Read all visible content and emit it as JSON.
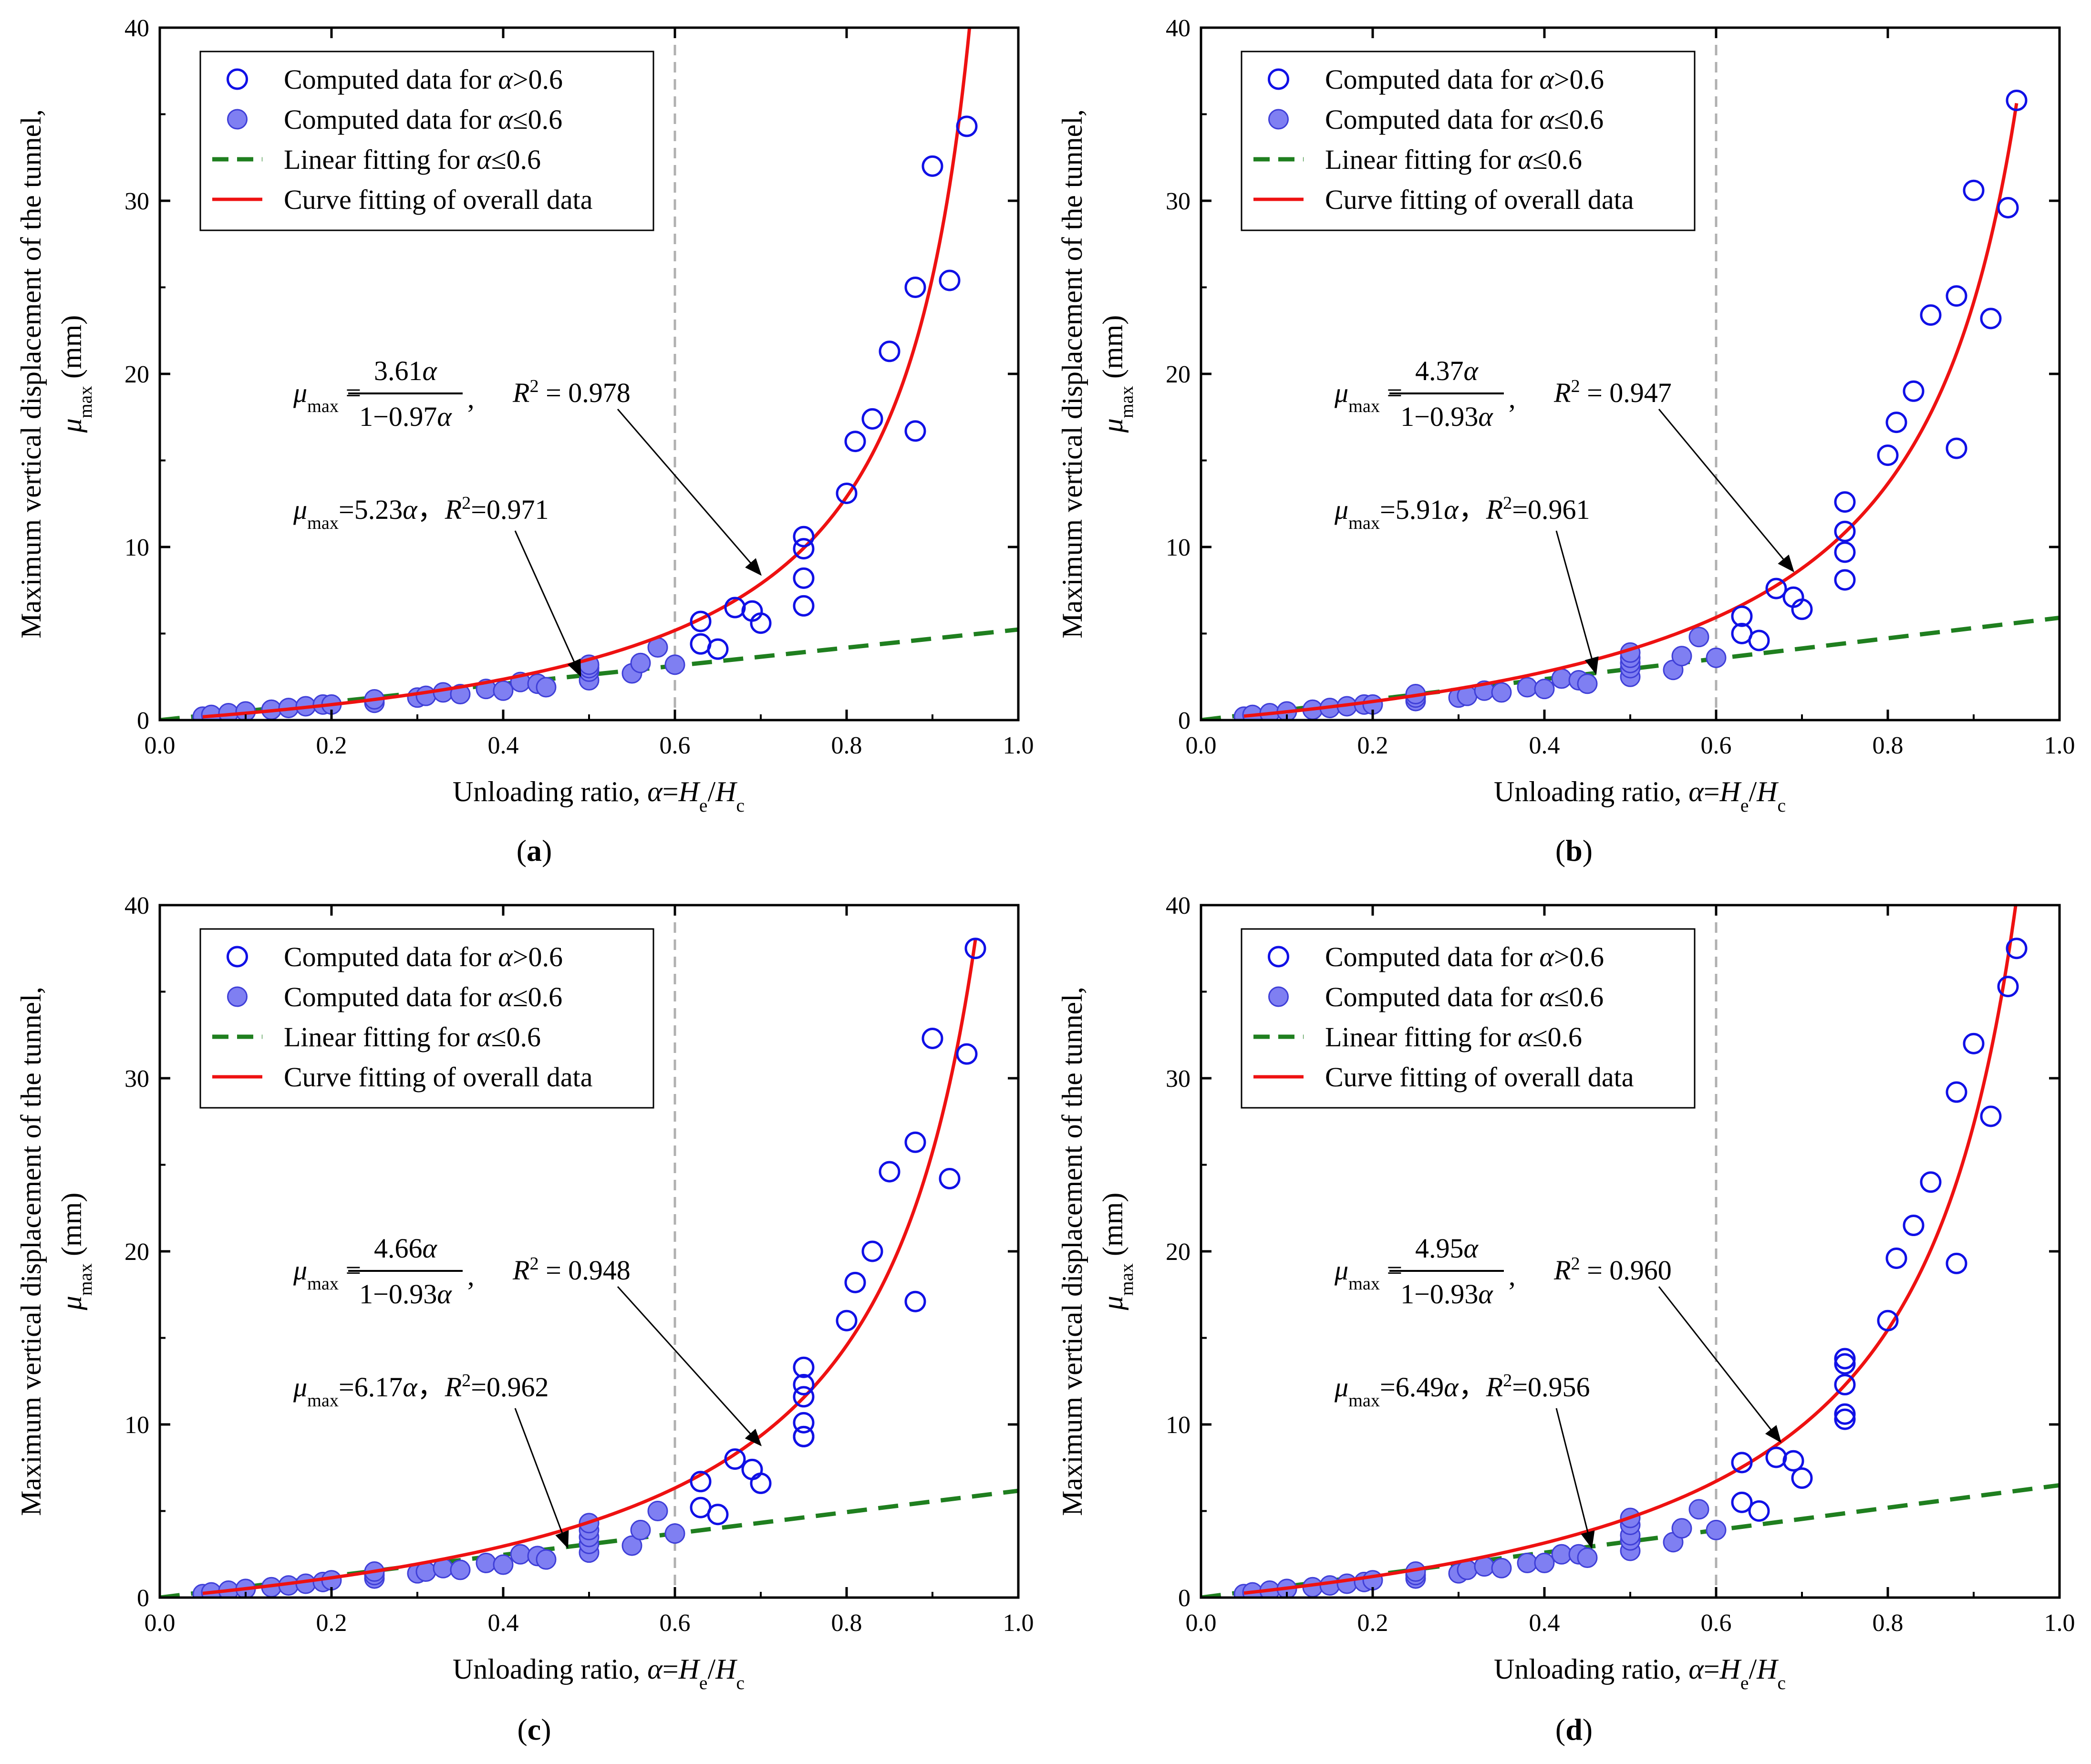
{
  "figure": {
    "panel_labels": [
      "(a)",
      "(b)",
      "(c)",
      "(d)"
    ]
  },
  "colors": {
    "open_marker": "#1010e6",
    "filled_marker_fill": "#7f7ff2",
    "filled_marker_stroke": "#3f3fd8",
    "linear_fit": "#1f7f1f",
    "curve_fit": "#ee1111",
    "threshold_line": "#b0b0b0"
  },
  "legend": {
    "entries": [
      "Computed data for α>0.6",
      "Computed data for α≤0.6",
      "Linear fitting for α≤0.6",
      "Curve fitting of overall data"
    ]
  },
  "chart_data": [
    {
      "type": "scatter",
      "panel": "(a)",
      "xlabel": "Unloading ratio, α=He/Hc",
      "ylabel_line1": "Maximum vertical displacement of the tunnel,",
      "ylabel_line2": "μmax (mm)",
      "xlim": [
        0,
        1.0
      ],
      "ylim": [
        0,
        40
      ],
      "xticks": [
        0.0,
        0.2,
        0.4,
        0.6,
        0.8,
        1.0
      ],
      "xtick_labels": [
        "0.0",
        "0.2",
        "0.4",
        "0.6",
        "0.8",
        "1.0"
      ],
      "yticks": [
        0,
        10,
        20,
        30,
        40
      ],
      "ytick_labels": [
        "0",
        "10",
        "20",
        "30",
        "40"
      ],
      "threshold_x": 0.6,
      "series": [
        {
          "name": "Computed data for α≤0.6",
          "marker": "filled",
          "x": [
            0.05,
            0.06,
            0.08,
            0.1,
            0.13,
            0.15,
            0.17,
            0.19,
            0.2,
            0.25,
            0.25,
            0.3,
            0.31,
            0.33,
            0.35,
            0.38,
            0.4,
            0.42,
            0.44,
            0.45,
            0.5,
            0.5,
            0.5,
            0.5,
            0.55,
            0.56,
            0.58,
            0.6
          ],
          "y": [
            0.2,
            0.3,
            0.4,
            0.5,
            0.6,
            0.7,
            0.8,
            0.9,
            0.9,
            1.0,
            1.2,
            1.3,
            1.4,
            1.6,
            1.5,
            1.8,
            1.7,
            2.2,
            2.1,
            1.9,
            2.3,
            2.8,
            3.0,
            3.2,
            2.7,
            3.3,
            4.2,
            3.2
          ]
        },
        {
          "name": "Computed data for α>0.6",
          "marker": "open",
          "x": [
            0.63,
            0.63,
            0.65,
            0.67,
            0.69,
            0.7,
            0.75,
            0.75,
            0.75,
            0.75,
            0.8,
            0.81,
            0.83,
            0.85,
            0.88,
            0.88,
            0.9,
            0.92,
            0.94
          ],
          "y": [
            5.7,
            4.4,
            4.1,
            6.5,
            6.3,
            5.6,
            10.6,
            9.9,
            8.2,
            6.6,
            13.1,
            16.1,
            17.4,
            21.3,
            25.0,
            16.7,
            32.0,
            25.4,
            34.3
          ]
        },
        {
          "name": "Linear fitting for α≤0.6",
          "style": "dashed",
          "slope": 5.23,
          "x_range": [
            0,
            1.0
          ]
        },
        {
          "name": "Curve fitting of overall data",
          "style": "solid",
          "a": 3.61,
          "b": 0.97,
          "x_range": [
            0.05,
            0.95
          ]
        }
      ],
      "annotations": {
        "curve_eq_lhs": "μmax",
        "curve_eq_num": "3.61α",
        "curve_eq_den": "1−0.97α",
        "curve_eq_r2": "R² = 0.978",
        "curve_arrow_to": [
          0.7,
          8.4
        ],
        "linear_eq": "μmax=5.23α，R²=0.971",
        "linear_arrow_to": [
          0.49,
          2.56
        ]
      }
    },
    {
      "type": "scatter",
      "panel": "(b)",
      "xlabel": "Unloading ratio, α=He/Hc",
      "ylabel_line1": "Maximum vertical displacement of the tunnel,",
      "ylabel_line2": "μmax (mm)",
      "xlim": [
        0,
        1.0
      ],
      "ylim": [
        0,
        40
      ],
      "xticks": [
        0.0,
        0.2,
        0.4,
        0.6,
        0.8,
        1.0
      ],
      "xtick_labels": [
        "0.0",
        "0.2",
        "0.4",
        "0.6",
        "0.8",
        "1.0"
      ],
      "yticks": [
        0,
        10,
        20,
        30,
        40
      ],
      "ytick_labels": [
        "0",
        "10",
        "20",
        "30",
        "40"
      ],
      "threshold_x": 0.6,
      "series": [
        {
          "name": "Computed data for α≤0.6",
          "marker": "filled",
          "x": [
            0.05,
            0.06,
            0.08,
            0.1,
            0.13,
            0.15,
            0.17,
            0.19,
            0.2,
            0.25,
            0.25,
            0.25,
            0.3,
            0.31,
            0.33,
            0.35,
            0.38,
            0.4,
            0.42,
            0.44,
            0.45,
            0.5,
            0.5,
            0.5,
            0.5,
            0.5,
            0.55,
            0.56,
            0.58,
            0.6
          ],
          "y": [
            0.2,
            0.3,
            0.4,
            0.5,
            0.6,
            0.7,
            0.8,
            0.9,
            0.9,
            1.1,
            1.3,
            1.5,
            1.3,
            1.4,
            1.7,
            1.6,
            1.9,
            1.8,
            2.4,
            2.3,
            2.1,
            2.5,
            3.0,
            3.3,
            3.6,
            3.9,
            2.9,
            3.7,
            4.8,
            3.6
          ]
        },
        {
          "name": "Computed data for α>0.6",
          "marker": "open",
          "x": [
            0.63,
            0.63,
            0.65,
            0.67,
            0.69,
            0.7,
            0.75,
            0.75,
            0.75,
            0.75,
            0.8,
            0.81,
            0.83,
            0.85,
            0.88,
            0.88,
            0.9,
            0.92,
            0.94,
            0.95
          ],
          "y": [
            6.0,
            5.0,
            4.6,
            7.6,
            7.1,
            6.4,
            12.6,
            10.9,
            9.7,
            8.1,
            15.3,
            17.2,
            19.0,
            23.4,
            24.5,
            15.7,
            30.6,
            23.2,
            29.6,
            35.8
          ]
        },
        {
          "name": "Linear fitting for α≤0.6",
          "style": "dashed",
          "slope": 5.91,
          "x_range": [
            0,
            1.0
          ]
        },
        {
          "name": "Curve fitting of overall data",
          "style": "solid",
          "a": 4.37,
          "b": 0.93,
          "x_range": [
            0.05,
            0.95
          ]
        }
      ],
      "annotations": {
        "curve_eq_lhs": "μmax",
        "curve_eq_num": "4.37α",
        "curve_eq_den": "1−0.93α",
        "curve_eq_r2": "R² = 0.947",
        "curve_arrow_to": [
          0.69,
          8.6
        ],
        "linear_eq": "μmax=5.91α，R²=0.961",
        "linear_arrow_to": [
          0.46,
          2.7
        ]
      }
    },
    {
      "type": "scatter",
      "panel": "(c)",
      "xlabel": "Unloading ratio, α=He/Hc",
      "ylabel_line1": "Maximum vertical displacement of the tunnel,",
      "ylabel_line2": "μmax (mm)",
      "xlim": [
        0,
        1.0
      ],
      "ylim": [
        0,
        40
      ],
      "xticks": [
        0.0,
        0.2,
        0.4,
        0.6,
        0.8,
        1.0
      ],
      "xtick_labels": [
        "0.0",
        "0.2",
        "0.4",
        "0.6",
        "0.8",
        "1.0"
      ],
      "yticks": [
        0,
        10,
        20,
        30,
        40
      ],
      "ytick_labels": [
        "0",
        "10",
        "20",
        "30",
        "40"
      ],
      "threshold_x": 0.6,
      "series": [
        {
          "name": "Computed data for α≤0.6",
          "marker": "filled",
          "x": [
            0.05,
            0.06,
            0.08,
            0.1,
            0.13,
            0.15,
            0.17,
            0.19,
            0.2,
            0.25,
            0.25,
            0.25,
            0.3,
            0.31,
            0.33,
            0.35,
            0.38,
            0.4,
            0.42,
            0.44,
            0.45,
            0.5,
            0.5,
            0.5,
            0.5,
            0.5,
            0.55,
            0.56,
            0.58,
            0.6
          ],
          "y": [
            0.2,
            0.3,
            0.4,
            0.5,
            0.6,
            0.7,
            0.8,
            0.9,
            1.0,
            1.1,
            1.3,
            1.5,
            1.4,
            1.5,
            1.7,
            1.6,
            2.0,
            1.9,
            2.5,
            2.4,
            2.2,
            2.6,
            3.1,
            3.5,
            3.9,
            4.3,
            3.0,
            3.9,
            5.0,
            3.7
          ]
        },
        {
          "name": "Computed data for α>0.6",
          "marker": "open",
          "x": [
            0.63,
            0.63,
            0.65,
            0.67,
            0.69,
            0.7,
            0.75,
            0.75,
            0.75,
            0.75,
            0.75,
            0.75,
            0.8,
            0.81,
            0.83,
            0.85,
            0.88,
            0.88,
            0.9,
            0.92,
            0.94,
            0.95
          ],
          "y": [
            6.7,
            5.2,
            4.8,
            8.0,
            7.4,
            6.6,
            13.3,
            12.3,
            11.6,
            10.1,
            9.3,
            9.3,
            16.0,
            18.2,
            20.0,
            24.6,
            26.3,
            17.1,
            32.3,
            24.2,
            31.4,
            37.5
          ]
        },
        {
          "name": "Linear fitting for α≤0.6",
          "style": "dashed",
          "slope": 6.17,
          "x_range": [
            0,
            1.0
          ]
        },
        {
          "name": "Curve fitting of overall data",
          "style": "solid",
          "a": 4.66,
          "b": 0.93,
          "x_range": [
            0.05,
            0.95
          ]
        }
      ],
      "annotations": {
        "curve_eq_lhs": "μmax",
        "curve_eq_num": "4.66α",
        "curve_eq_den": "1−0.93α",
        "curve_eq_r2": "R² = 0.948",
        "curve_arrow_to": [
          0.7,
          8.8
        ],
        "linear_eq": "μmax=6.17α，R²=0.962",
        "linear_arrow_to": [
          0.475,
          2.9
        ]
      }
    },
    {
      "type": "scatter",
      "panel": "(d)",
      "xlabel": "Unloading ratio, α=He/Hc",
      "ylabel_line1": "Maximum vertical displacement of the tunnel,",
      "ylabel_line2": "μmax (mm)",
      "xlim": [
        0,
        1.0
      ],
      "ylim": [
        0,
        40
      ],
      "xticks": [
        0.0,
        0.2,
        0.4,
        0.6,
        0.8,
        1.0
      ],
      "xtick_labels": [
        "0.0",
        "0.2",
        "0.4",
        "0.6",
        "0.8",
        "1.0"
      ],
      "yticks": [
        0,
        10,
        20,
        30,
        40
      ],
      "ytick_labels": [
        "0",
        "10",
        "20",
        "30",
        "40"
      ],
      "threshold_x": 0.6,
      "series": [
        {
          "name": "Computed data for α≤0.6",
          "marker": "filled",
          "x": [
            0.05,
            0.06,
            0.08,
            0.1,
            0.13,
            0.15,
            0.17,
            0.19,
            0.2,
            0.25,
            0.25,
            0.25,
            0.3,
            0.31,
            0.33,
            0.35,
            0.38,
            0.4,
            0.42,
            0.44,
            0.45,
            0.5,
            0.5,
            0.5,
            0.5,
            0.5,
            0.55,
            0.56,
            0.58,
            0.6
          ],
          "y": [
            0.2,
            0.3,
            0.4,
            0.5,
            0.6,
            0.7,
            0.8,
            0.9,
            1.0,
            1.1,
            1.3,
            1.5,
            1.4,
            1.6,
            1.8,
            1.7,
            2.0,
            2.0,
            2.5,
            2.5,
            2.3,
            2.7,
            3.3,
            3.6,
            4.2,
            4.6,
            3.2,
            4.0,
            5.1,
            3.9
          ]
        },
        {
          "name": "Computed data for α>0.6",
          "marker": "open",
          "x": [
            0.63,
            0.63,
            0.65,
            0.67,
            0.69,
            0.7,
            0.75,
            0.75,
            0.75,
            0.75,
            0.75,
            0.8,
            0.81,
            0.83,
            0.85,
            0.88,
            0.88,
            0.9,
            0.92,
            0.94,
            0.95
          ],
          "y": [
            7.8,
            5.5,
            5.0,
            8.1,
            7.9,
            6.9,
            13.8,
            13.5,
            12.3,
            10.6,
            10.3,
            16.0,
            19.6,
            21.5,
            24.0,
            29.2,
            19.3,
            32.0,
            27.8,
            35.3,
            37.5
          ]
        },
        {
          "name": "Linear fitting for α≤0.6",
          "style": "dashed",
          "slope": 6.49,
          "x_range": [
            0,
            1.0
          ]
        },
        {
          "name": "Curve fitting of overall data",
          "style": "solid",
          "a": 4.95,
          "b": 0.93,
          "x_range": [
            0.05,
            0.95
          ]
        }
      ],
      "annotations": {
        "curve_eq_lhs": "μmax",
        "curve_eq_num": "4.95α",
        "curve_eq_den": "1−0.93α",
        "curve_eq_r2": "R² = 0.960",
        "curve_arrow_to": [
          0.675,
          9.0
        ],
        "linear_eq": "μmax=6.49α，R²=0.956",
        "linear_arrow_to": [
          0.455,
          2.9
        ]
      }
    }
  ]
}
